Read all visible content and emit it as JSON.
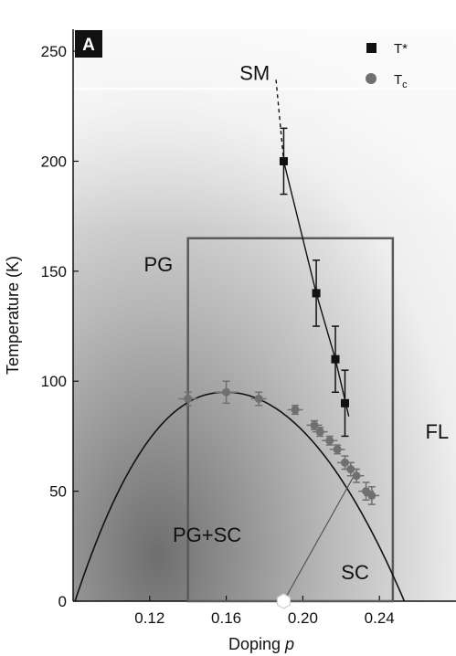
{
  "panel_label": "A",
  "chart_data": {
    "type": "scatter",
    "xlabel": "Doping",
    "xlabel_var": "p",
    "ylabel": "Temperature (K)",
    "xlim": [
      0.08,
      0.28
    ],
    "ylim": [
      0,
      260
    ],
    "x_ticks": [
      0.12,
      0.16,
      0.2,
      0.24
    ],
    "x_tick_labels": [
      "0.12",
      "0.16",
      "0.20",
      "0.24"
    ],
    "y_ticks": [
      0,
      50,
      100,
      150,
      200,
      250
    ],
    "y_tick_labels": [
      "0",
      "50",
      "100",
      "150",
      "200",
      "250"
    ],
    "legend_position": "top-right",
    "series": [
      {
        "name": "T*",
        "marker": "square",
        "color": "#111111",
        "points": [
          {
            "x": 0.19,
            "y": 200,
            "err": 15
          },
          {
            "x": 0.207,
            "y": 140,
            "err": 15
          },
          {
            "x": 0.217,
            "y": 110,
            "err": 15
          },
          {
            "x": 0.222,
            "y": 90,
            "err": 15
          }
        ]
      },
      {
        "name": "T",
        "name_sub": "c",
        "marker": "circle",
        "color": "#707070",
        "points": [
          {
            "x": 0.14,
            "y": 92,
            "err": 3,
            "xerr": 0.005
          },
          {
            "x": 0.16,
            "y": 95,
            "err": 5,
            "xerr": 0.006
          },
          {
            "x": 0.177,
            "y": 92,
            "err": 3,
            "xerr": 0.004
          },
          {
            "x": 0.196,
            "y": 87,
            "err": 2,
            "xerr": 0.004
          },
          {
            "x": 0.206,
            "y": 80,
            "err": 2,
            "xerr": 0.004
          },
          {
            "x": 0.209,
            "y": 77,
            "err": 2,
            "xerr": 0.004
          },
          {
            "x": 0.214,
            "y": 73,
            "err": 2,
            "xerr": 0.004
          },
          {
            "x": 0.218,
            "y": 69,
            "err": 2,
            "xerr": 0.004
          },
          {
            "x": 0.222,
            "y": 63,
            "err": 3,
            "xerr": 0.004
          },
          {
            "x": 0.225,
            "y": 60,
            "err": 3,
            "xerr": 0.004
          },
          {
            "x": 0.228,
            "y": 57,
            "err": 3,
            "xerr": 0.004
          },
          {
            "x": 0.233,
            "y": 50,
            "err": 4,
            "xerr": 0.004
          },
          {
            "x": 0.236,
            "y": 48,
            "err": 4,
            "xerr": 0.004
          }
        ]
      }
    ],
    "tc_dome": {
      "x_start": 0.081,
      "x_end": 0.253,
      "peak_x": 0.16,
      "peak_y": 95,
      "color": "#111111"
    },
    "tstar_line": {
      "points": [
        [
          0.186,
          237
        ],
        [
          0.19,
          200
        ],
        [
          0.207,
          140
        ],
        [
          0.217,
          110
        ],
        [
          0.224,
          84
        ]
      ],
      "dashed_until_x": 0.19
    },
    "critical_point": {
      "x": 0.19,
      "y": 0
    },
    "critical_line": [
      [
        0.19,
        0
      ],
      [
        0.228,
        59
      ]
    ],
    "box": {
      "x0": 0.14,
      "x1": 0.247,
      "y0": 0,
      "y1": 165
    },
    "regions": [
      {
        "label": "SM",
        "x": 0.167,
        "y": 237
      },
      {
        "label": "PG",
        "x": 0.117,
        "y": 150
      },
      {
        "label": "FL",
        "x": 0.264,
        "y": 74
      },
      {
        "label": "PG+SC",
        "x": 0.132,
        "y": 27
      },
      {
        "label": "SC",
        "x": 0.22,
        "y": 10
      }
    ]
  }
}
